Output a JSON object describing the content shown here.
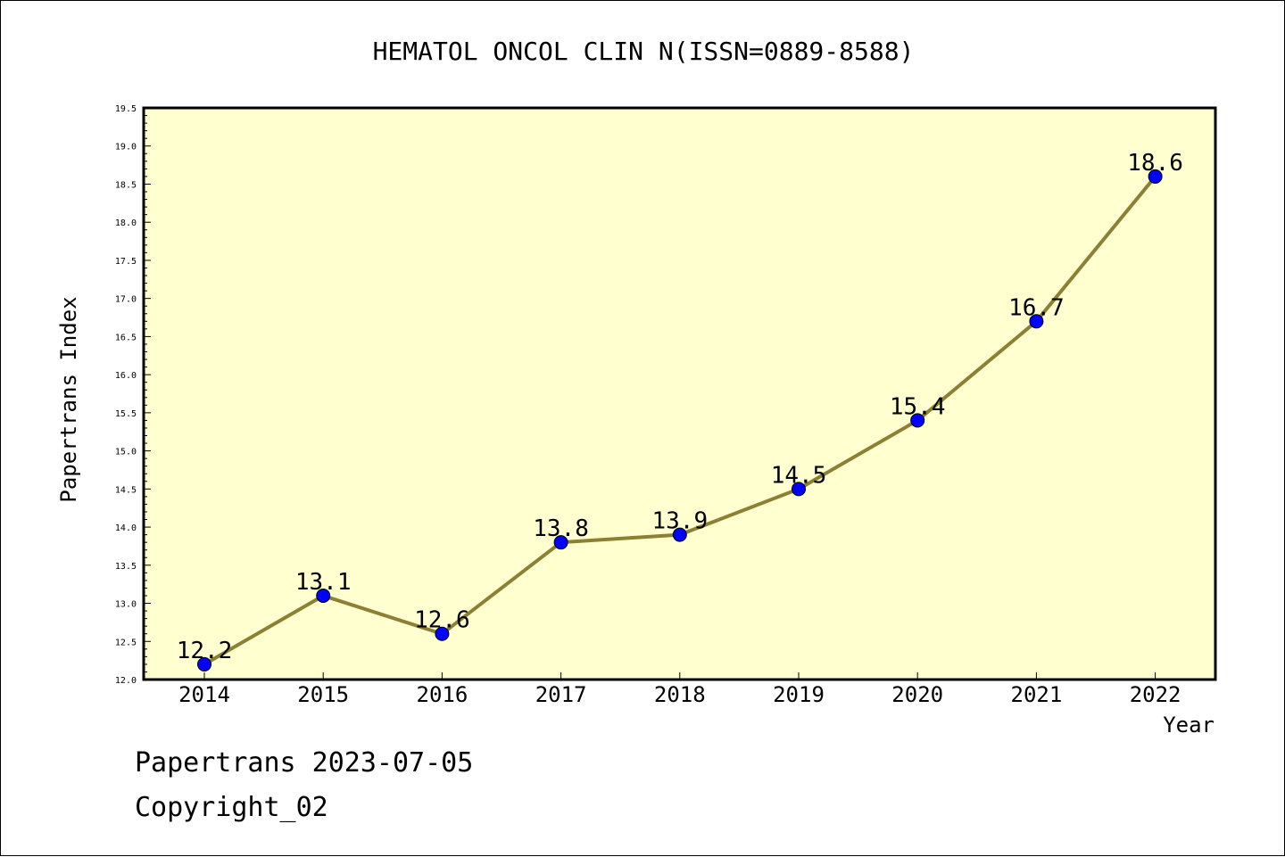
{
  "chart_data": {
    "type": "line",
    "title": "HEMATOL ONCOL CLIN N(ISSN=0889-8588)",
    "xlabel": "Year",
    "ylabel": "Papertrans Index",
    "x": [
      "2014",
      "2015",
      "2016",
      "2017",
      "2018",
      "2019",
      "2020",
      "2021",
      "2022"
    ],
    "series": [
      {
        "values": [
          12.2,
          13.1,
          12.6,
          13.8,
          13.9,
          14.5,
          15.4,
          16.7,
          18.6
        ]
      }
    ],
    "data_labels": [
      "12.2",
      "13.1",
      "12.6",
      "13.8",
      "13.9",
      "14.5",
      "15.4",
      "16.7",
      "18.6"
    ],
    "ylim": [
      12.0,
      19.5
    ],
    "yticks": [
      "12.0",
      "12.5",
      "13.0",
      "13.5",
      "14.0",
      "14.5",
      "15.0",
      "15.5",
      "16.0",
      "16.5",
      "17.0",
      "17.5",
      "18.0",
      "18.5",
      "19.0",
      "19.5"
    ],
    "grid": false,
    "colors": {
      "plot_background": "#ffffd0",
      "line": "#8c8035",
      "marker": "#0000ff"
    }
  },
  "footer": {
    "line1": "Papertrans 2023-07-05",
    "line2": "Copyright_02"
  }
}
